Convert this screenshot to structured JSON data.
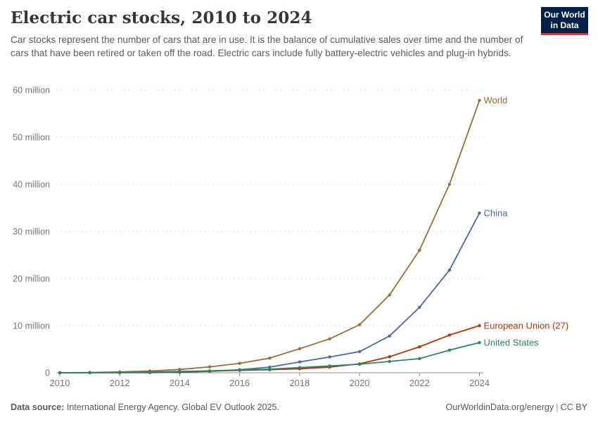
{
  "header": {
    "title": "Electric car stocks, 2010 to 2024",
    "subtitle": "Car stocks represent the number of cars that are in use. It is the balance of cumulative sales over time and the number of cars that have been retired or taken off the road. Electric cars include fully battery-electric vehicles and plug-in hybrids.",
    "logo": {
      "line1": "Our World",
      "line2": "in Data"
    }
  },
  "chart_data": {
    "type": "line",
    "title": "Electric car stocks, 2010 to 2024",
    "unit": "million",
    "x": [
      2010,
      2011,
      2012,
      2013,
      2014,
      2015,
      2016,
      2017,
      2018,
      2019,
      2020,
      2021,
      2022,
      2023,
      2024
    ],
    "series": [
      {
        "name": "World",
        "color": "#996D39",
        "values": [
          0.02,
          0.06,
          0.18,
          0.38,
          0.7,
          1.26,
          2.0,
          3.1,
          5.1,
          7.2,
          10.2,
          16.5,
          26.0,
          40.0,
          57.8
        ]
      },
      {
        "name": "China",
        "color": "#4C6A9C",
        "values": [
          0.005,
          0.01,
          0.02,
          0.03,
          0.1,
          0.3,
          0.65,
          1.2,
          2.3,
          3.35,
          4.5,
          7.8,
          13.9,
          21.8,
          33.9
        ]
      },
      {
        "name": "European Union (27)",
        "color": "#B13507",
        "values": [
          0.005,
          0.02,
          0.05,
          0.1,
          0.2,
          0.35,
          0.5,
          0.65,
          0.85,
          1.2,
          1.9,
          3.4,
          5.5,
          8.0,
          10.0
        ]
      },
      {
        "name": "United States",
        "color": "#2C8465",
        "values": [
          0.002,
          0.02,
          0.07,
          0.17,
          0.29,
          0.4,
          0.56,
          0.76,
          1.1,
          1.45,
          1.8,
          2.4,
          3.0,
          4.8,
          6.4
        ]
      }
    ],
    "yticks": [
      {
        "value": 0,
        "label": "0"
      },
      {
        "value": 10,
        "label": "10 million"
      },
      {
        "value": 20,
        "label": "20 million"
      },
      {
        "value": 30,
        "label": "30 million"
      },
      {
        "value": 40,
        "label": "40 million"
      },
      {
        "value": 50,
        "label": "50 million"
      },
      {
        "value": 60,
        "label": "60 million"
      }
    ],
    "xticks": [
      2010,
      2012,
      2014,
      2016,
      2018,
      2020,
      2022,
      2024
    ],
    "xlim": [
      2010,
      2024
    ],
    "ylim": [
      0,
      60
    ],
    "grid": "horizontal-dashed",
    "legend_position": "line-end-labels",
    "colors": {
      "grid": "#dcdcdc",
      "axis": "#8f8f8f",
      "tick_label": "#767676"
    }
  },
  "footer": {
    "datasource_label": "Data source:",
    "datasource_text": " International Energy Agency. Global EV Outlook 2025.",
    "link": "OurWorldinData.org/energy",
    "separator": "|",
    "license": "CC BY"
  }
}
